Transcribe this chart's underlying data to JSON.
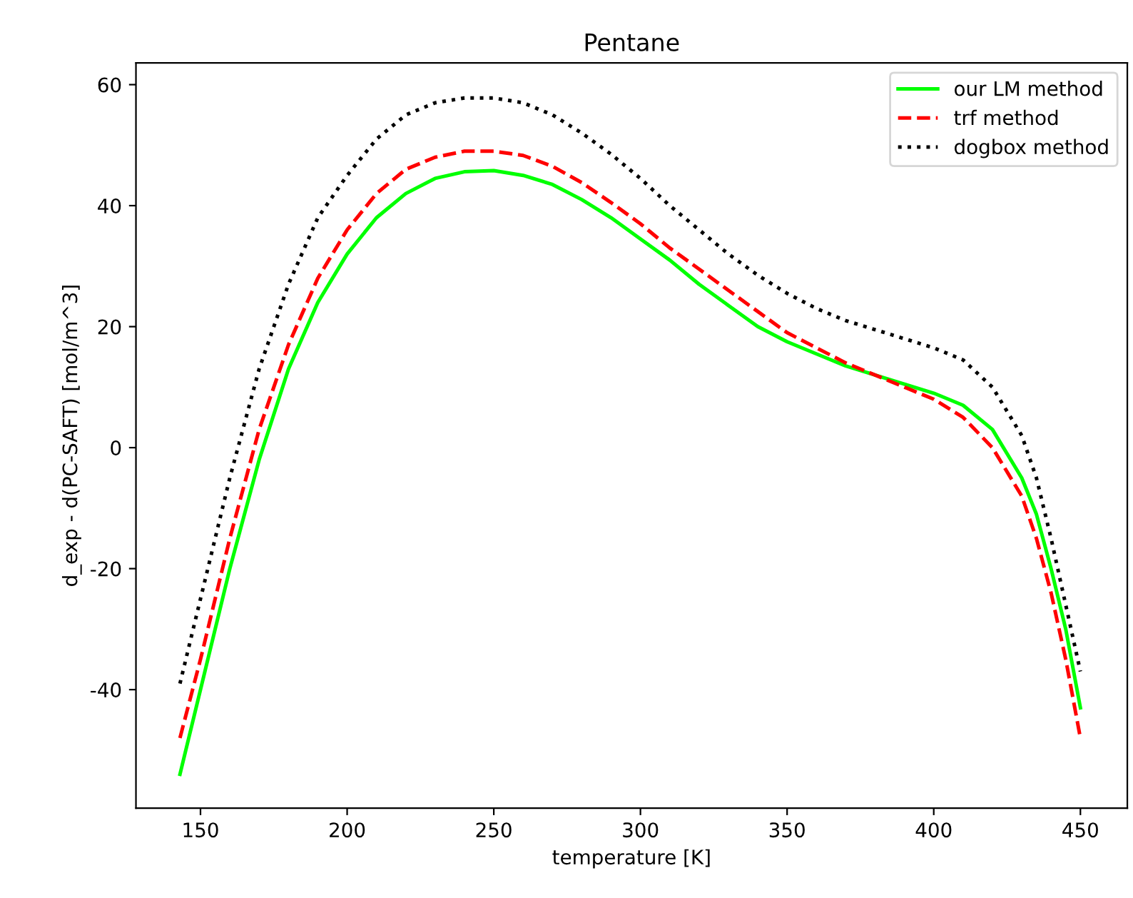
{
  "chart_data": {
    "type": "line",
    "title": "Pentane",
    "xlabel": "temperature [K]",
    "ylabel": "d_exp - d(PC-SAFT) [mol/m^3]",
    "xlim": [
      128,
      466
    ],
    "ylim": [
      -59.6,
      63.6
    ],
    "xticks": [
      150,
      200,
      250,
      300,
      350,
      400,
      450
    ],
    "yticks": [
      -40,
      -20,
      0,
      20,
      40,
      60
    ],
    "grid": false,
    "legend": "top right",
    "x": [
      143,
      150,
      160,
      170,
      180,
      190,
      200,
      210,
      220,
      230,
      240,
      250,
      260,
      270,
      280,
      290,
      300,
      310,
      320,
      330,
      340,
      350,
      360,
      370,
      380,
      390,
      400,
      410,
      420,
      430,
      435,
      440,
      445,
      450
    ],
    "series": [
      {
        "name": "our LM method",
        "color": "#00ff00",
        "line_style": "solid",
        "values": [
          -54,
          -40,
          -20,
          -2,
          13,
          24,
          32,
          38,
          42,
          44.5,
          45.6,
          45.8,
          45,
          43.5,
          41,
          38,
          34.5,
          31,
          27,
          23.5,
          20,
          17.5,
          15.5,
          13.5,
          12,
          10.5,
          9,
          7,
          3,
          -5,
          -11,
          -20,
          -30,
          -43
        ]
      },
      {
        "name": "trf method",
        "color": "#ff0000",
        "line_style": "dashed",
        "values": [
          -48,
          -35,
          -15,
          3,
          17,
          28,
          36,
          42,
          46,
          48,
          49,
          49,
          48.3,
          46.5,
          43.8,
          40.5,
          37,
          33,
          29.5,
          26,
          22.5,
          19,
          16.5,
          14,
          12,
          10,
          8,
          5,
          0,
          -8,
          -15,
          -24,
          -35,
          -48
        ]
      },
      {
        "name": "dogbox method",
        "color": "#000000",
        "line_style": "dotted",
        "values": [
          -39,
          -25,
          -5,
          13,
          27,
          38,
          45,
          51,
          55,
          57,
          57.8,
          57.8,
          57,
          55,
          52,
          48.5,
          44.5,
          40,
          36,
          32,
          28.5,
          25.5,
          23,
          21,
          19.5,
          18,
          16.5,
          14.5,
          10,
          2,
          -5,
          -15,
          -26,
          -37
        ]
      }
    ]
  }
}
